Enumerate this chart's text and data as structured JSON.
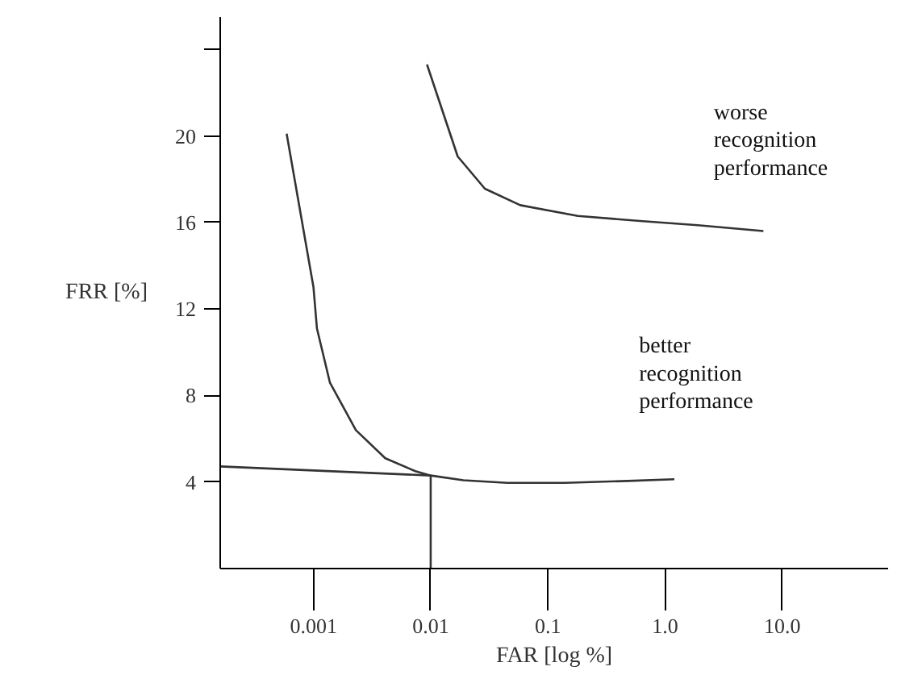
{
  "chart_data": {
    "type": "line",
    "xlabel": "FAR [log %]",
    "ylabel": "FRR [%]",
    "log": "x",
    "grid": false,
    "marker": "none",
    "line_style": "solid",
    "xlim": [
      0.00016,
      80
    ],
    "ylim": [
      0,
      25.5
    ],
    "xticks": [
      0.001,
      0.01,
      0.1,
      {
        "value": 1,
        "label": "1.0"
      },
      {
        "value": 10,
        "label": "10.0"
      }
    ],
    "yticks": [
      4,
      8,
      12,
      16,
      20,
      {
        "value": 24,
        "label": null
      }
    ],
    "series": [
      {
        "color": "#333333",
        "x": [
          0.0093,
          0.017,
          0.029,
          0.058,
          0.18,
          0.61,
          1.9,
          6.9
        ],
        "values": [
          23.3,
          19.05,
          17.56,
          16.8,
          16.3,
          16.07,
          15.87,
          15.6
        ]
      },
      {
        "color": "#333333",
        "x": [
          0.00059,
          0.001,
          0.00107,
          0.00138,
          0.0023,
          0.0041,
          0.0074,
          0.01,
          0.019,
          0.045,
          0.14,
          0.48,
          1.2
        ],
        "values": [
          20.1,
          13.0,
          11.1,
          8.6,
          6.4,
          5.1,
          4.5,
          4.3,
          4.08,
          3.96,
          3.96,
          4.05,
          4.13
        ]
      },
      {
        "color": "#333333",
        "x": [
          0.00016,
          0.01
        ],
        "values": [
          4.72,
          4.3
        ]
      },
      {
        "color": "#333333",
        "x": [
          0.01,
          0.01
        ],
        "values": [
          0,
          4.3
        ]
      }
    ],
    "annotations": [
      "worse\nrecognition\nperformance",
      "better\nrecognition\nperformance"
    ]
  }
}
